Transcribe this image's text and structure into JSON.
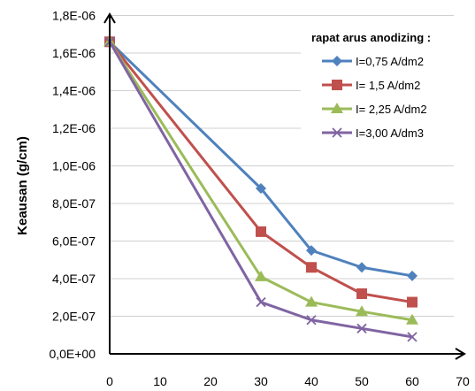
{
  "chart_data": {
    "type": "line",
    "ylabel": "Keausan (g/cm)",
    "xlabel": "",
    "x": [
      0,
      30,
      40,
      50,
      60
    ],
    "xlim": [
      0,
      70
    ],
    "ylim": [
      0,
      1.8e-06
    ],
    "x_ticks": [
      "0",
      "10",
      "20",
      "30",
      "40",
      "50",
      "60",
      "70"
    ],
    "y_ticks": [
      "0,0E+00",
      "2,0E-07",
      "4,0E-07",
      "6,0E-07",
      "8,0E-07",
      "1,0E-06",
      "1,2E-06",
      "1,4E-06",
      "1,6E-06",
      "1,8E-06"
    ],
    "grid": "horizontal",
    "legend_title": "rapat arus anodizing :",
    "legend_position": "top-right",
    "series": [
      {
        "name": "I=0,75 A/dm2",
        "color": "#4F81BD",
        "marker": "diamond",
        "values": [
          1.66e-06,
          8.8e-07,
          5.5e-07,
          4.6e-07,
          4.15e-07
        ]
      },
      {
        "name": "I= 1,5 A/dm2",
        "color": "#C0504D",
        "marker": "square",
        "values": [
          1.66e-06,
          6.5e-07,
          4.6e-07,
          3.2e-07,
          2.75e-07
        ]
      },
      {
        "name": "I= 2,25 A/dm2",
        "color": "#9BBB59",
        "marker": "triangle",
        "values": [
          1.66e-06,
          4.1e-07,
          2.75e-07,
          2.25e-07,
          1.8e-07
        ]
      },
      {
        "name": "I=3,00 A/dm3",
        "color": "#8064A2",
        "marker": "x",
        "values": [
          1.66e-06,
          2.75e-07,
          1.8e-07,
          1.35e-07,
          9e-08
        ]
      }
    ]
  }
}
